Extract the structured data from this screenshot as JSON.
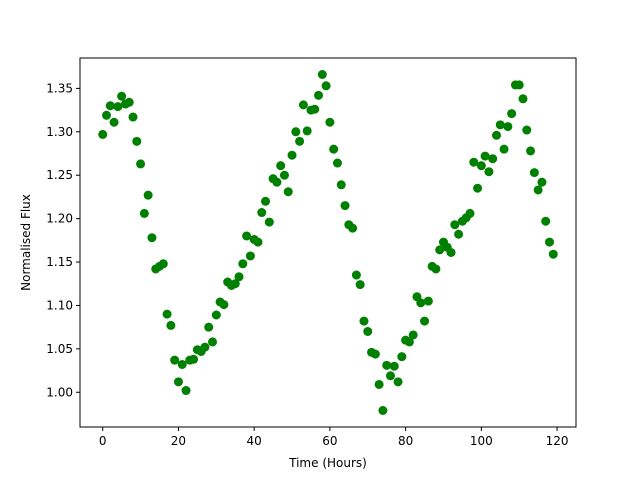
{
  "chart_data": {
    "type": "scatter",
    "title": "",
    "xlabel": "Time (Hours)",
    "ylabel": "Normalised Flux",
    "xlim": [
      -6,
      125
    ],
    "ylim": [
      0.96,
      1.385
    ],
    "xticks": [
      0,
      20,
      40,
      60,
      80,
      100,
      120
    ],
    "yticks": [
      1.0,
      1.05,
      1.1,
      1.15,
      1.2,
      1.25,
      1.3,
      1.35
    ],
    "grid": false,
    "legend": "none",
    "colors": {
      "marker": "#008000",
      "axes": "#000000",
      "background": "#ffffff"
    },
    "series": [
      {
        "x": [
          0,
          1,
          2,
          3,
          4,
          5,
          6,
          7,
          8,
          9,
          10,
          11,
          12,
          13,
          14,
          15,
          16,
          17,
          18,
          19,
          20,
          21,
          22,
          23,
          24,
          25,
          26,
          27,
          28,
          29,
          30,
          31,
          32,
          33,
          34,
          35,
          36,
          37,
          38,
          39,
          40,
          41,
          42,
          43,
          44,
          45,
          46,
          47,
          48,
          49,
          50,
          51,
          52,
          53,
          54,
          55,
          56,
          57,
          58,
          59,
          60,
          61,
          62,
          63,
          64,
          65,
          66,
          67,
          68,
          69,
          70,
          71,
          72,
          73,
          74,
          75,
          76,
          77,
          78,
          79,
          80,
          81,
          82,
          83,
          84,
          85,
          86,
          87,
          88,
          89,
          90,
          91,
          92,
          93,
          94,
          95,
          96,
          97,
          98,
          99,
          100,
          101,
          102,
          103,
          104,
          105,
          106,
          107,
          108,
          109,
          110,
          111,
          112,
          113,
          114,
          115,
          116,
          117,
          118,
          119
        ],
        "y": [
          1.297,
          1.319,
          1.33,
          1.311,
          1.329,
          1.341,
          1.332,
          1.334,
          1.317,
          1.289,
          1.263,
          1.206,
          1.227,
          1.178,
          1.142,
          1.145,
          1.148,
          1.09,
          1.077,
          1.037,
          1.012,
          1.032,
          1.002,
          1.037,
          1.038,
          1.049,
          1.047,
          1.052,
          1.075,
          1.058,
          1.089,
          1.104,
          1.101,
          1.127,
          1.123,
          1.125,
          1.133,
          1.148,
          1.18,
          1.157,
          1.176,
          1.173,
          1.207,
          1.22,
          1.196,
          1.246,
          1.242,
          1.261,
          1.25,
          1.231,
          1.273,
          1.3,
          1.289,
          1.331,
          1.301,
          1.325,
          1.326,
          1.342,
          1.366,
          1.353,
          1.311,
          1.28,
          1.264,
          1.239,
          1.215,
          1.193,
          1.189,
          1.135,
          1.124,
          1.082,
          1.07,
          1.046,
          1.044,
          1.009,
          0.979,
          1.031,
          1.019,
          1.03,
          1.012,
          1.041,
          1.06,
          1.058,
          1.066,
          1.11,
          1.103,
          1.082,
          1.105,
          1.145,
          1.142,
          1.164,
          1.173,
          1.167,
          1.161,
          1.193,
          1.182,
          1.197,
          1.201,
          1.206,
          1.265,
          1.235,
          1.261,
          1.272,
          1.254,
          1.269,
          1.296,
          1.308,
          1.28,
          1.306,
          1.321,
          1.354,
          1.354,
          1.338,
          1.302,
          1.278,
          1.253,
          1.233,
          1.242,
          1.197,
          1.173,
          1.159
        ]
      }
    ]
  }
}
